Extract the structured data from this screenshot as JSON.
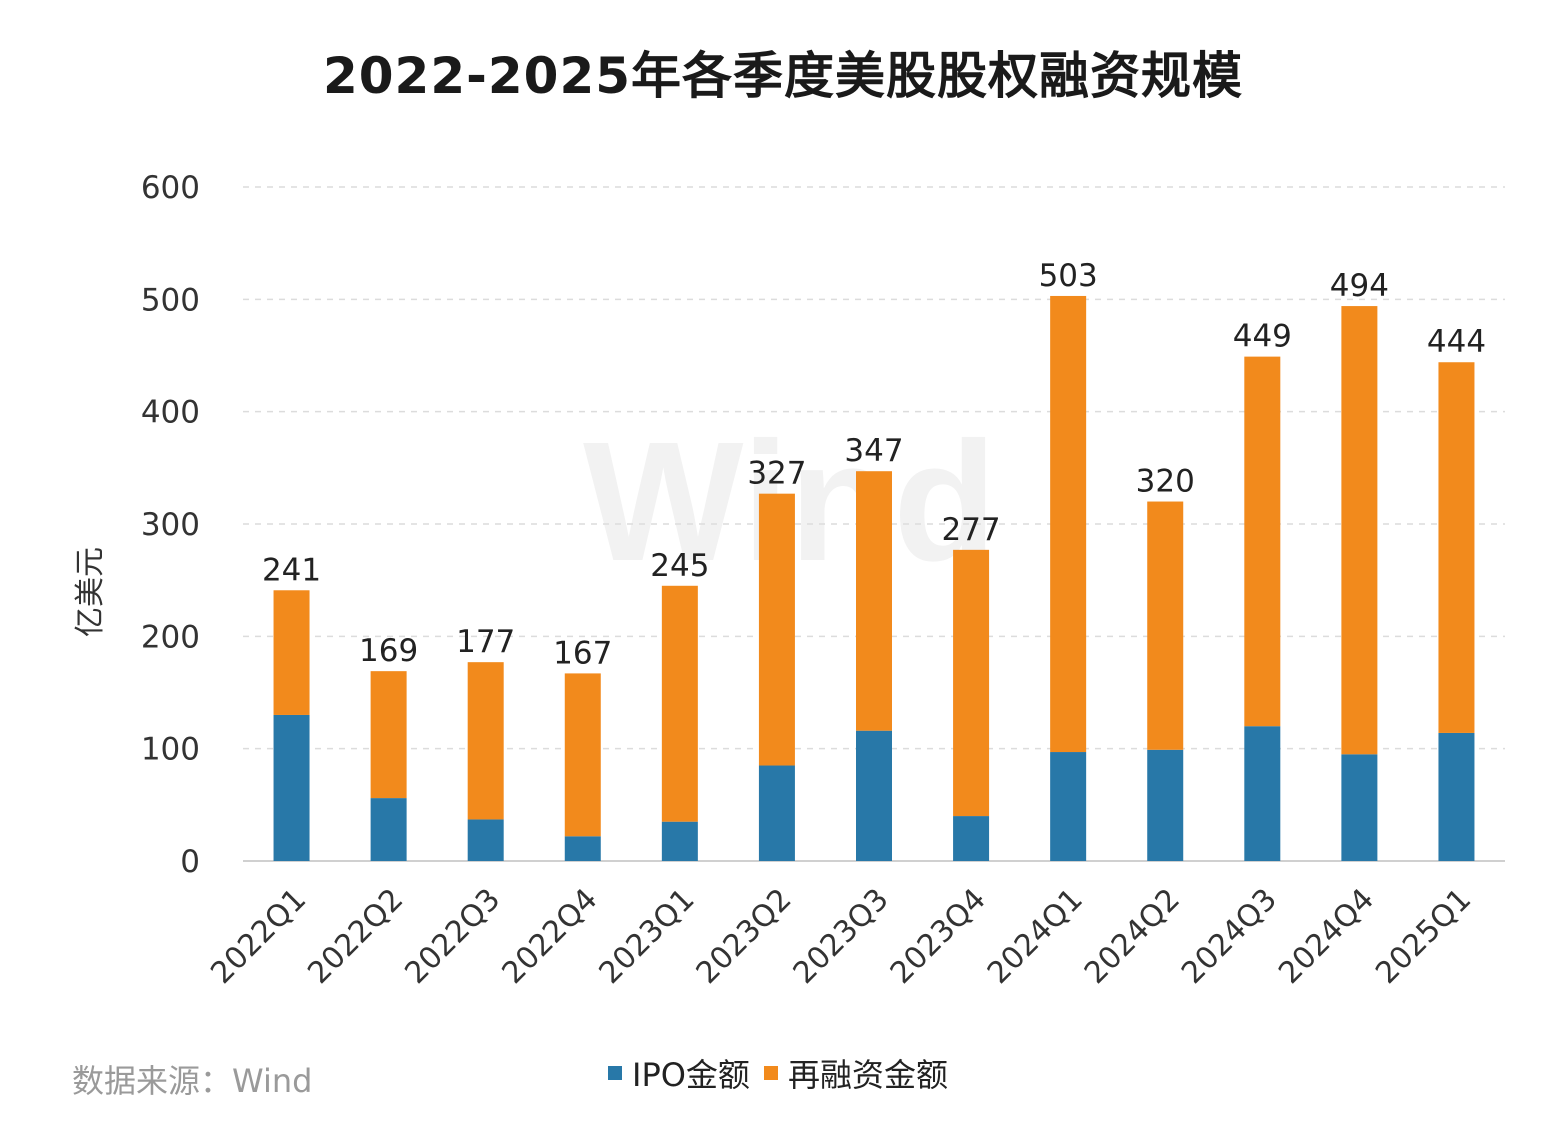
{
  "chart_data": {
    "type": "bar",
    "stacked": true,
    "title": "2022-2025年各季度美股股权融资规模",
    "xlabel": "",
    "ylabel": "亿美元",
    "ylim": [
      0,
      600
    ],
    "yticks": [
      0,
      100,
      200,
      300,
      400,
      500,
      600
    ],
    "grid": true,
    "legend_position": "bottom",
    "categories": [
      "2022Q1",
      "2022Q2",
      "2022Q3",
      "2022Q4",
      "2023Q1",
      "2023Q2",
      "2023Q3",
      "2023Q4",
      "2024Q1",
      "2024Q2",
      "2024Q3",
      "2024Q4",
      "2025Q1"
    ],
    "series": [
      {
        "name": "IPO金额",
        "color": "#2878a8",
        "values": [
          130,
          56,
          37,
          22,
          35,
          85,
          116,
          40,
          97,
          99,
          120,
          95,
          114
        ]
      },
      {
        "name": "再融资金额",
        "color": "#f28a1c",
        "values": [
          111,
          113,
          140,
          145,
          210,
          242,
          231,
          237,
          406,
          221,
          329,
          399,
          330
        ]
      }
    ],
    "totals": [
      241,
      169,
      177,
      167,
      245,
      327,
      347,
      277,
      503,
      320,
      449,
      494,
      444
    ],
    "watermark": "Wind"
  },
  "source_note": "数据来源：Wind"
}
